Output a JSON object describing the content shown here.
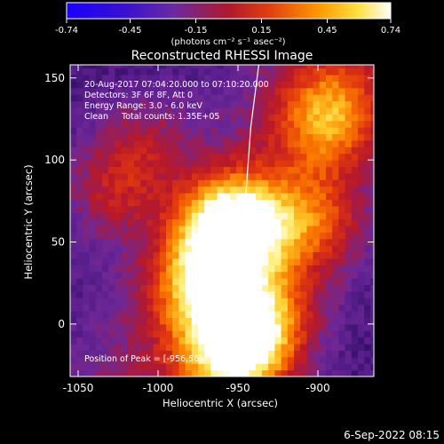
{
  "colorbar": {
    "ticks": [
      "-0.74",
      "-0.45",
      "-0.15",
      "0.15",
      "0.45",
      "0.74"
    ],
    "tick_values": [
      -0.74,
      -0.45,
      -0.15,
      0.15,
      0.45,
      0.74
    ],
    "range": [
      -0.74,
      0.74
    ],
    "unit_label": "(photons cm⁻² s⁻¹ asec⁻²)"
  },
  "chart_data": {
    "type": "heatmap",
    "title": "Reconstructed RHESSI Image",
    "xlabel": "Heliocentric X (arcsec)",
    "ylabel": "Heliocentric Y (arcsec)",
    "xlim": [
      -1055,
      -865
    ],
    "ylim": [
      -32,
      158
    ],
    "x_ticks": [
      -1050,
      -1000,
      -950,
      -900
    ],
    "x_tick_labels": [
      "-1050",
      "-1000",
      "-950",
      "-900"
    ],
    "y_ticks": [
      0,
      50,
      100,
      150
    ],
    "y_tick_labels": [
      "0",
      "50",
      "100",
      "150"
    ],
    "colormap": "IDL color table 5 (black-purple-red-yellow-white)",
    "colormap_stops": [
      "#1a00ff",
      "#5a20b0",
      "#6a2aa0",
      "#b81c2c",
      "#e84010",
      "#ff9a00",
      "#ffe040",
      "#ffffff"
    ],
    "annotations": [
      "20-Aug-2017 07:04:20.000 to 07:10:20.000",
      "Detectors: 3F 6F 8F, Att 0",
      "Energy Range: 3.0 - 6.0 keV",
      "Clean     Total counts: 1.35E+05"
    ],
    "peak_label": "Position of Peak = [-956,56]",
    "peak": {
      "x": -956,
      "y": 56
    },
    "sources": [
      {
        "x": -956,
        "y": 56,
        "peak_frac": 1.0
      },
      {
        "x": -975,
        "y": 20,
        "peak_frac": 0.55
      },
      {
        "x": -935,
        "y": 0,
        "peak_frac": 0.55
      },
      {
        "x": -955,
        "y": -25,
        "peak_frac": 0.7
      },
      {
        "x": -895,
        "y": 125,
        "peak_frac": 0.5
      },
      {
        "x": -905,
        "y": 60,
        "peak_frac": 0.4
      },
      {
        "x": -1030,
        "y": 80,
        "peak_frac": 0.3
      },
      {
        "x": -1010,
        "y": 110,
        "peak_frac": 0.22
      }
    ],
    "limb_curve": [
      {
        "x": -949,
        "y": -28
      },
      {
        "x": -948,
        "y": 0
      },
      {
        "x": -947,
        "y": 40
      },
      {
        "x": -945,
        "y": 80
      },
      {
        "x": -942,
        "y": 120
      },
      {
        "x": -937,
        "y": 158
      }
    ]
  },
  "footer": {
    "timestamp": "6-Sep-2022 08:15"
  }
}
